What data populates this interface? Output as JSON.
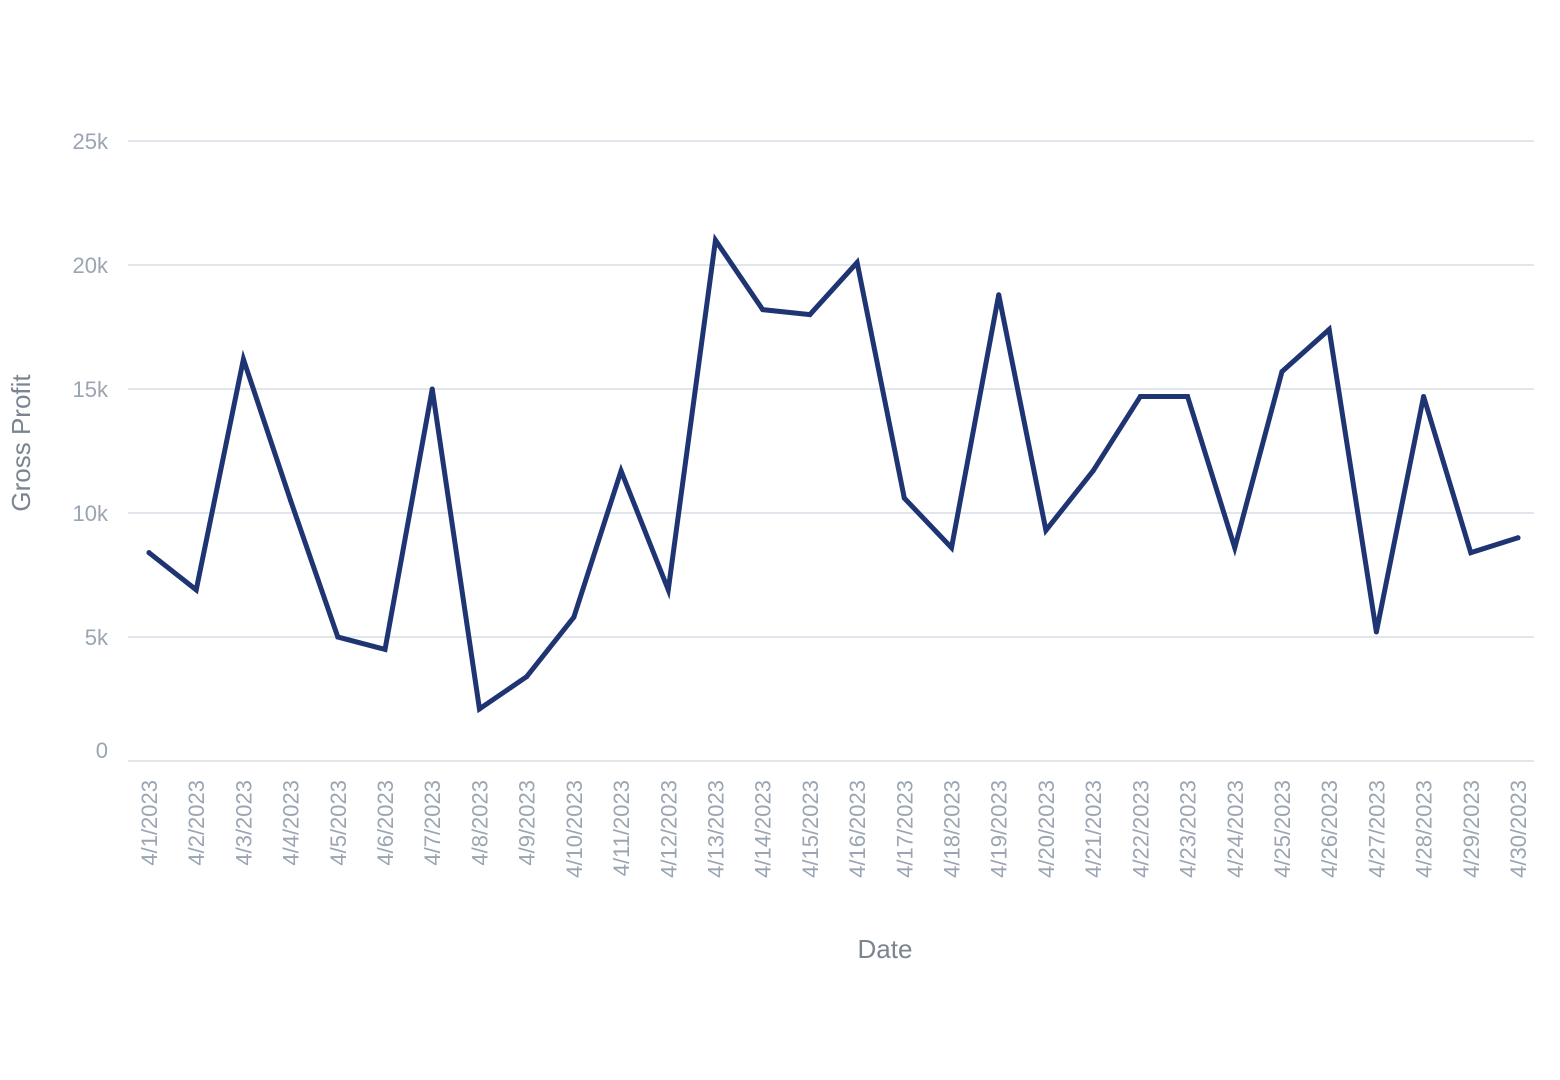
{
  "chart_data": {
    "type": "line",
    "title": "",
    "xlabel": "Date",
    "ylabel": "Gross Profit",
    "ylim": [
      0,
      25000
    ],
    "yticks": [
      0,
      5000,
      10000,
      15000,
      20000,
      25000
    ],
    "ytick_labels": [
      "0",
      "5k",
      "10k",
      "15k",
      "20k",
      "25k"
    ],
    "grid": true,
    "legend": "none",
    "line_color": "#1f3473",
    "categories": [
      "4/1/2023",
      "4/2/2023",
      "4/3/2023",
      "4/4/2023",
      "4/5/2023",
      "4/6/2023",
      "4/7/2023",
      "4/8/2023",
      "4/9/2023",
      "4/10/2023",
      "4/11/2023",
      "4/12/2023",
      "4/13/2023",
      "4/14/2023",
      "4/15/2023",
      "4/16/2023",
      "4/17/2023",
      "4/18/2023",
      "4/19/2023",
      "4/20/2023",
      "4/21/2023",
      "4/22/2023",
      "4/23/2023",
      "4/24/2023",
      "4/25/2023",
      "4/26/2023",
      "4/27/2023",
      "4/28/2023",
      "4/29/2023",
      "4/30/2023"
    ],
    "series": [
      {
        "values": [
          8400,
          6900,
          16200,
          10500,
          5000,
          4500,
          15000,
          2100,
          3400,
          5800,
          11700,
          6900,
          21000,
          18200,
          18000,
          20100,
          10600,
          8600,
          18800,
          9300,
          11700,
          14700,
          14700,
          8600,
          15700,
          17400,
          5200,
          14700,
          8400,
          9000
        ]
      }
    ]
  }
}
